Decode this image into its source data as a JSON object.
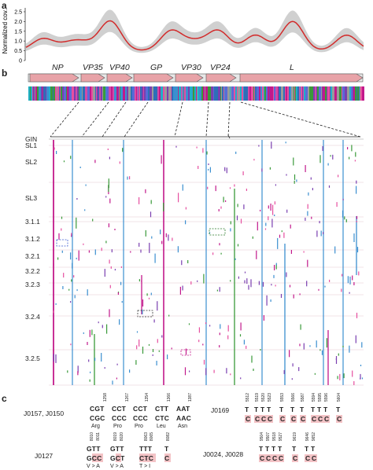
{
  "panels": {
    "a": "a",
    "b": "b",
    "c": "c"
  },
  "coverage": {
    "ylabel": "Normalized cov.",
    "yticks": [
      "0",
      "0.5",
      "1.0",
      "1.5",
      "2.0",
      "2.5"
    ],
    "ylim": [
      0,
      2.7
    ],
    "line_color": "#d22b2b",
    "band_color": "#d0d0d0"
  },
  "genes": [
    "NP",
    "VP35",
    "VP40",
    "GP",
    "VP30",
    "VP24",
    "L"
  ],
  "row_labels": [
    "GIN",
    "SL1",
    "SL2",
    "SL3",
    "3.1.1",
    "3.1.2",
    "3.2.1",
    "3.2.2",
    "3.2.3",
    "3.2.4",
    "3.2.5"
  ],
  "mutation_colors": {
    "magenta": "#c2188b",
    "blue": "#3b8fd0",
    "green": "#3a9a3a",
    "pink": "#e64fa0"
  },
  "panel_c": {
    "groups": [
      {
        "samples": "J0157, J0150",
        "positions": [
          "1258",
          "1267",
          "1354",
          "1366",
          "1387"
        ],
        "ref": [
          "CGT",
          "CCT",
          "CCT",
          "CTT",
          "AAT"
        ],
        "alt": [
          "CGC",
          "CCC",
          "CCC",
          "CTC",
          "AAC"
        ],
        "aa": [
          "Arg",
          "Pro",
          "Pro",
          "Leu",
          "Asn"
        ]
      },
      {
        "samples": "J0169",
        "positions": [
          "5512",
          "5519",
          "5520",
          "5523",
          "5553",
          "5566",
          "5587",
          "5594",
          "5595",
          "5596",
          "5604"
        ],
        "ref": [
          "T",
          "T",
          "T",
          "T",
          "T",
          "T",
          "T",
          "T",
          "T",
          "T",
          "T"
        ],
        "alt": [
          "C",
          "C",
          "C",
          "C",
          "C",
          "C",
          "C",
          "C",
          "C",
          "C",
          "C"
        ]
      },
      {
        "samples": "J0127",
        "positions": [
          "8010",
          "8011",
          "8019",
          "8020",
          "8063",
          "8065",
          "8082"
        ],
        "ref": [
          "GTT",
          "GTT",
          "TTT",
          "T"
        ],
        "alt": [
          "GCC",
          "GCT",
          "CTC",
          "C"
        ],
        "aa": [
          "V > A",
          "V > A",
          "T > I",
          ""
        ]
      },
      {
        "samples": "J0024, J0028",
        "positions": [
          "9504",
          "9507",
          "9518",
          "9527",
          "9619",
          "9646",
          "9652"
        ],
        "ref": [
          "T",
          "T",
          "T",
          "T",
          "T",
          "T",
          "T"
        ],
        "alt": [
          "C",
          "C",
          "C",
          "C",
          "C",
          "C",
          "C"
        ]
      }
    ]
  }
}
